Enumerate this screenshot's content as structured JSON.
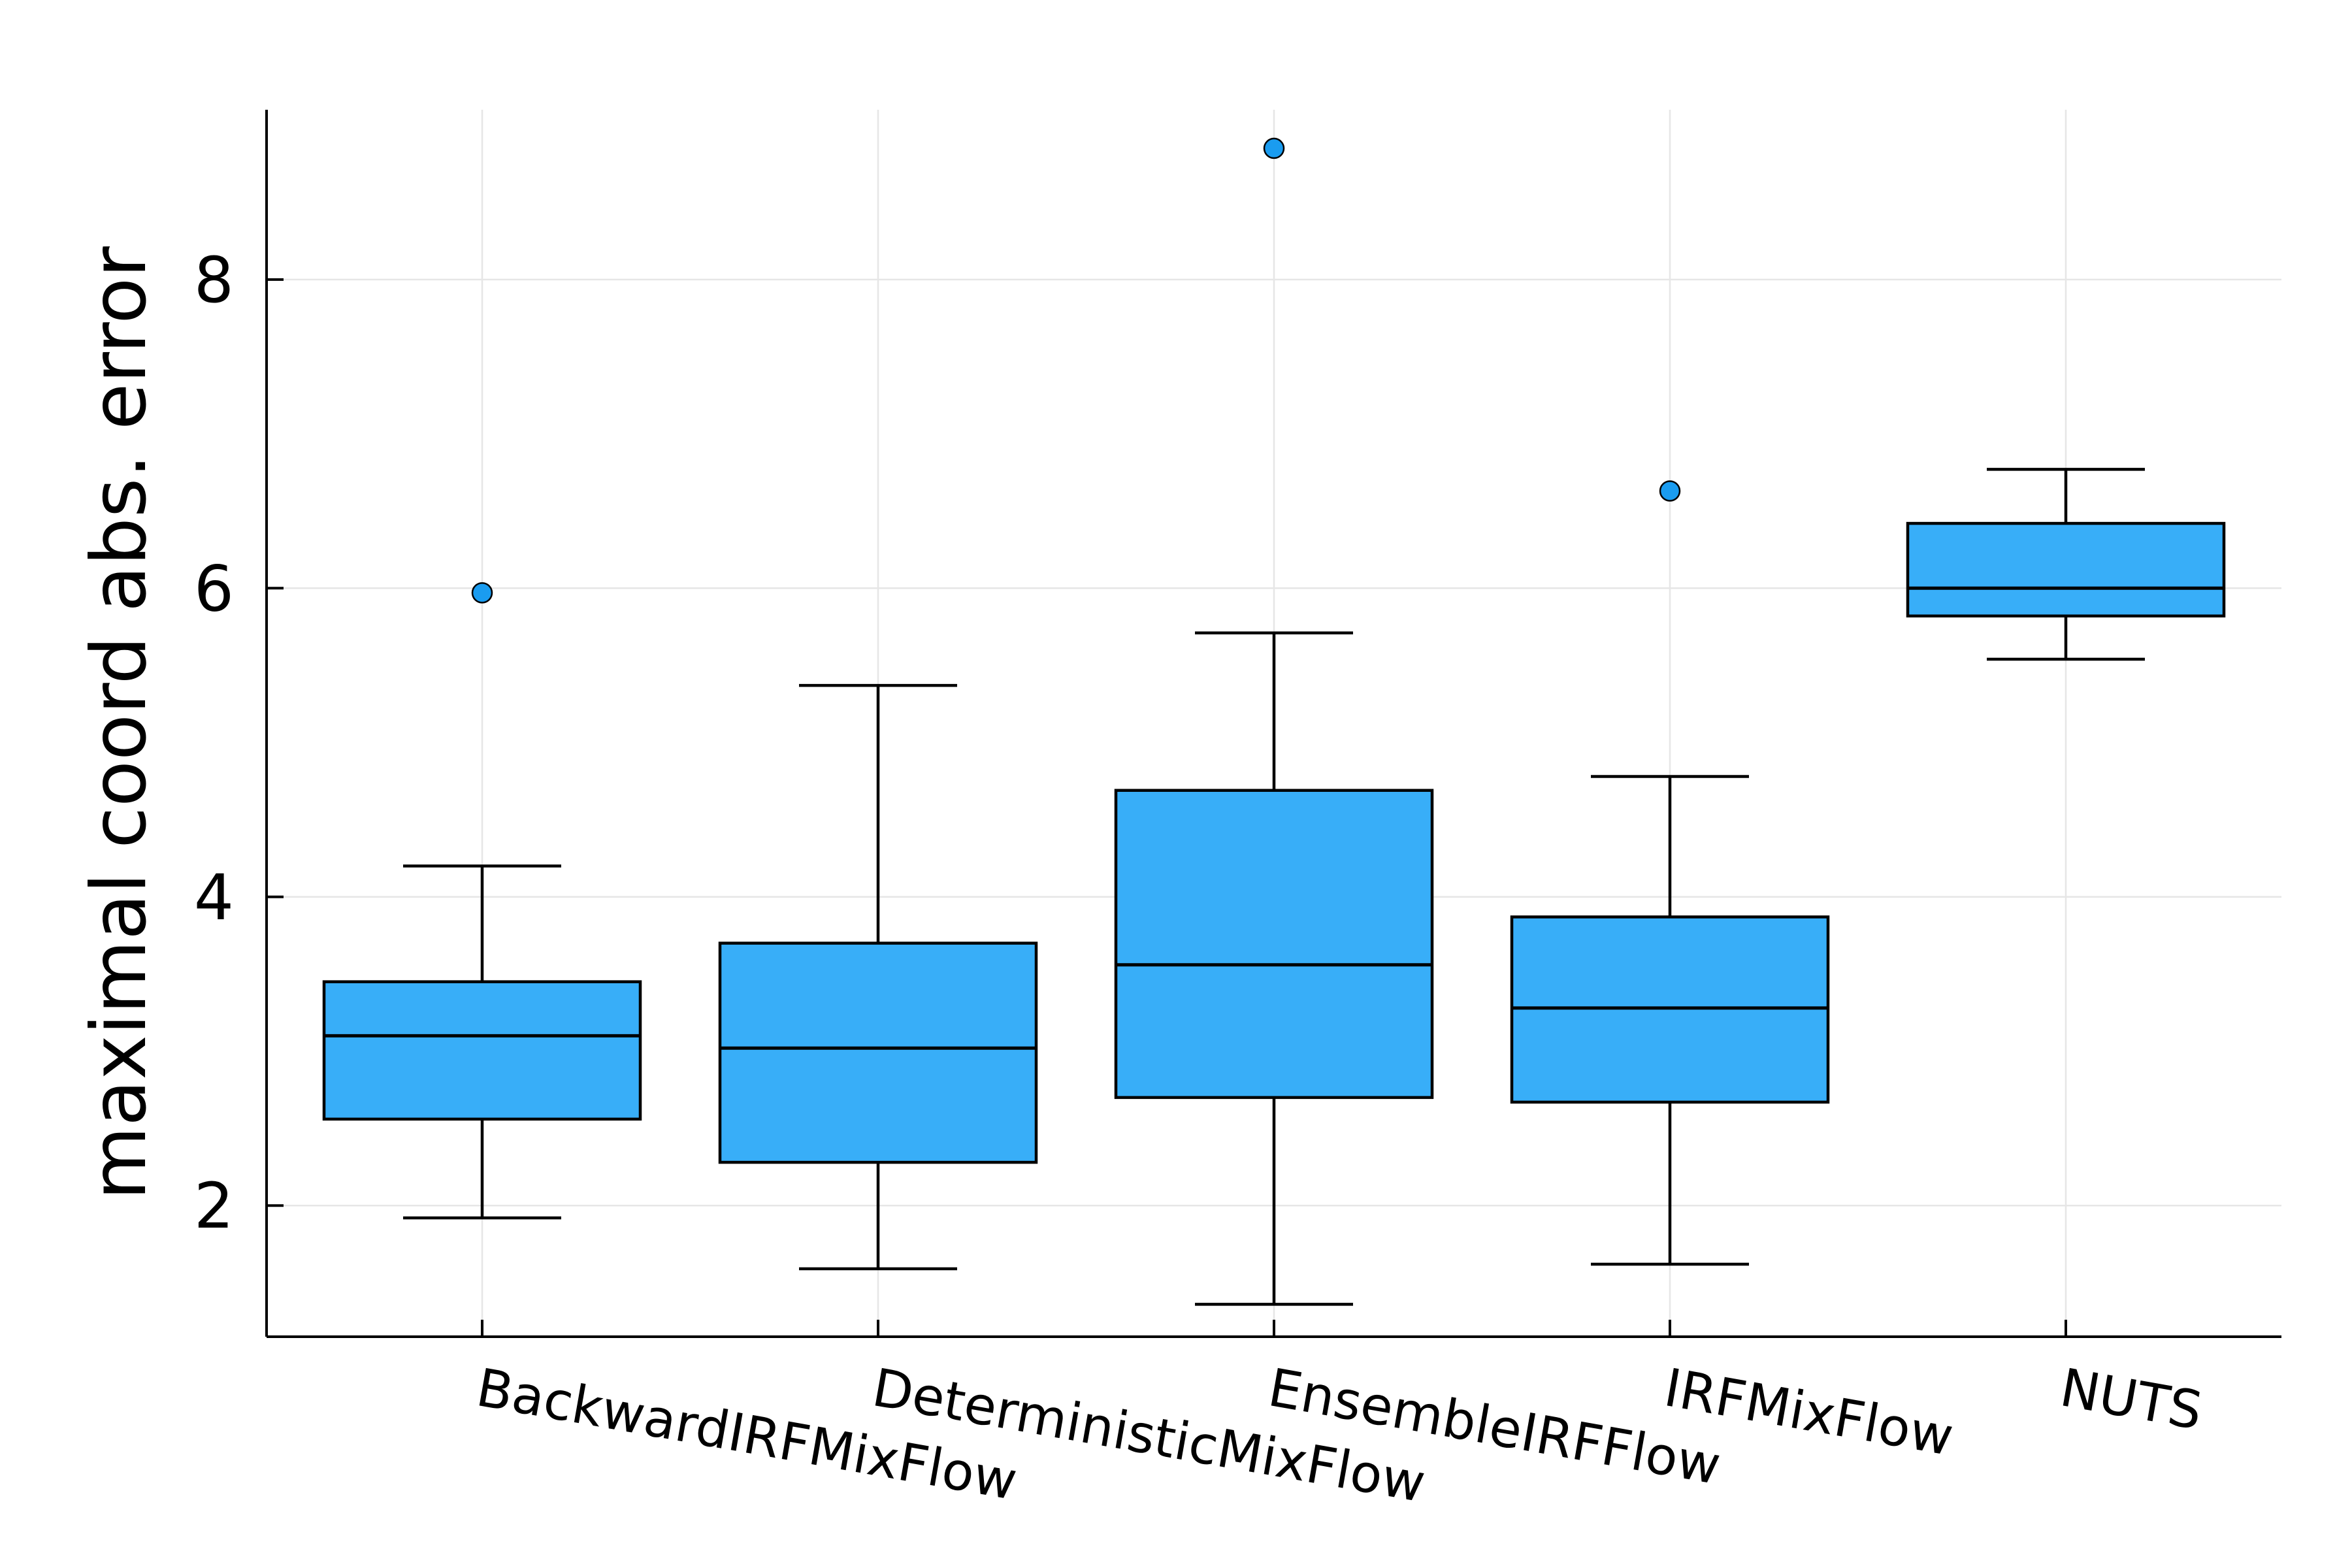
{
  "chart_data": {
    "type": "boxplot",
    "title": "",
    "xlabel": "",
    "ylabel": "maximal coord abs. error",
    "ylim": [
      1.15,
      9.1
    ],
    "yticks": [
      2,
      4,
      6,
      8
    ],
    "ytick_labels": [
      "2",
      "4",
      "6",
      "8"
    ],
    "grid": true,
    "legend": "none",
    "colors": {
      "box": "#38aef8",
      "outlier": "#1a9cf0",
      "line": "#000000",
      "grid": "#e6e6e6"
    },
    "categories": [
      "BackwardIRFMixFlow",
      "DeterministicMixFlow",
      "EnsembleIRFFlow",
      "IRFMixFlow",
      "NUTS"
    ],
    "boxes": [
      {
        "category": "BackwardIRFMixFlow",
        "whisker_low": 1.92,
        "q1": 2.56,
        "median": 3.1,
        "q3": 3.45,
        "whisker_high": 4.2,
        "outliers": [
          5.97
        ]
      },
      {
        "category": "DeterministicMixFlow",
        "whisker_low": 1.59,
        "q1": 2.28,
        "median": 3.02,
        "q3": 3.7,
        "whisker_high": 5.37,
        "outliers": []
      },
      {
        "category": "EnsembleIRFFlow",
        "whisker_low": 1.36,
        "q1": 2.7,
        "median": 3.56,
        "q3": 4.69,
        "whisker_high": 5.71,
        "outliers": [
          8.85
        ]
      },
      {
        "category": "IRFMixFlow",
        "whisker_low": 1.62,
        "q1": 2.67,
        "median": 3.28,
        "q3": 3.87,
        "whisker_high": 4.78,
        "outliers": [
          6.63
        ]
      },
      {
        "category": "NUTS",
        "whisker_low": 5.54,
        "q1": 5.82,
        "median": 6.0,
        "q3": 6.42,
        "whisker_high": 6.77,
        "outliers": []
      }
    ]
  }
}
